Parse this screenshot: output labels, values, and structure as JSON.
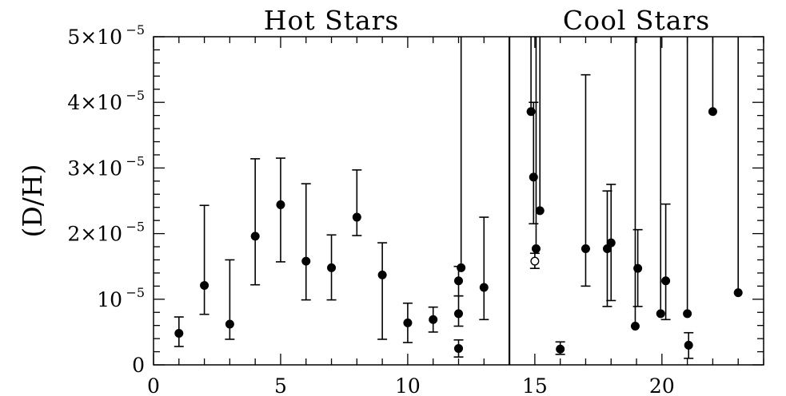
{
  "chart_data": {
    "type": "scatter",
    "title": "",
    "xlabel": "",
    "ylabel": "(D/H)",
    "xlim": [
      0,
      24
    ],
    "ylim": [
      0,
      5e-05
    ],
    "x_ticks": [
      {
        "value": 0,
        "label": "0"
      },
      {
        "value": 5,
        "label": "5"
      },
      {
        "value": 10,
        "label": "10"
      },
      {
        "value": 15,
        "label": "15"
      },
      {
        "value": 20,
        "label": "20"
      }
    ],
    "y_ticks": [
      {
        "value": 0,
        "label": "0",
        "exp": ""
      },
      {
        "value": 1e-05,
        "label": "10",
        "exp": "−5"
      },
      {
        "value": 2e-05,
        "label": "2×10",
        "exp": "−5"
      },
      {
        "value": 3e-05,
        "label": "3×10",
        "exp": "−5"
      },
      {
        "value": 4e-05,
        "label": "4×10",
        "exp": "−5"
      },
      {
        "value": 5e-05,
        "label": "5×10",
        "exp": "−5"
      }
    ],
    "grid": false,
    "divider_x": 14,
    "panels": [
      {
        "label": "Hot Stars",
        "x_center": 7
      },
      {
        "label": "Cool Stars",
        "x_center": 19
      }
    ],
    "series": [
      {
        "points": [
          {
            "x": 1,
            "y": 4.8e-06,
            "lo": 2.8e-06,
            "hi": 7.3e-06
          },
          {
            "x": 2,
            "y": 1.21e-05,
            "lo": 7.7e-06,
            "hi": 2.43e-05
          },
          {
            "x": 3,
            "y": 6.2e-06,
            "lo": 3.9e-06,
            "hi": 1.6e-05
          },
          {
            "x": 4,
            "y": 1.96e-05,
            "lo": 1.22e-05,
            "hi": 3.14e-05
          },
          {
            "x": 5,
            "y": 2.44e-05,
            "lo": 1.57e-05,
            "hi": 3.15e-05
          },
          {
            "x": 6,
            "y": 1.58e-05,
            "lo": 9.9e-06,
            "hi": 2.76e-05
          },
          {
            "x": 7,
            "y": 1.48e-05,
            "lo": 9.9e-06,
            "hi": 1.98e-05
          },
          {
            "x": 8,
            "y": 2.25e-05,
            "lo": 1.97e-05,
            "hi": 2.97e-05
          },
          {
            "x": 9,
            "y": 1.37e-05,
            "lo": 3.9e-06,
            "hi": 1.86e-05
          },
          {
            "x": 10,
            "y": 6.4e-06,
            "lo": 3.4e-06,
            "hi": 9.4e-06
          },
          {
            "x": 11,
            "y": 6.9e-06,
            "lo": 5e-06,
            "hi": 8.8e-06
          },
          {
            "x": 12,
            "y": 2.5e-06,
            "lo": 1.2e-06,
            "hi": 3.8e-06
          },
          {
            "x": 12,
            "y": 7.8e-06,
            "lo": 5.9e-06,
            "hi": 1.05e-05
          },
          {
            "x": 12,
            "y": 1.28e-05,
            "lo": 1.05e-05,
            "hi": 1.5e-05
          },
          {
            "x": 12.1,
            "y": 1.48e-05,
            "lo": 1.48e-05,
            "hi": 5e-05
          },
          {
            "x": 13,
            "y": 1.18e-05,
            "lo": 6.9e-06,
            "hi": 2.25e-05
          },
          {
            "x": 14.85,
            "y": 3.86e-05,
            "lo": 3.86e-05,
            "hi": 5e-05
          },
          {
            "x": 14.95,
            "y": 2.86e-05,
            "lo": 2.15e-05,
            "hi": 4e-05
          },
          {
            "x": 15.05,
            "y": 1.77e-05,
            "lo": 1.77e-05,
            "hi": 5e-05
          },
          {
            "x": 15.2,
            "y": 2.35e-05,
            "lo": 2.35e-05,
            "hi": 5e-05
          },
          {
            "x": 15,
            "y": 1.58e-05,
            "lo": 1.47e-05,
            "hi": 1.7e-05,
            "open": true
          },
          {
            "x": 16,
            "y": 2.4e-06,
            "lo": 1.6e-06,
            "hi": 3.5e-06
          },
          {
            "x": 17,
            "y": 1.77e-05,
            "lo": 1.2e-05,
            "hi": 4.42e-05
          },
          {
            "x": 17.85,
            "y": 1.77e-05,
            "lo": 8.9e-06,
            "hi": 2.65e-05
          },
          {
            "x": 18,
            "y": 1.86e-05,
            "lo": 9.8e-06,
            "hi": 2.75e-05
          },
          {
            "x": 18.95,
            "y": 5.9e-06,
            "lo": 5.9e-06,
            "hi": 5e-05
          },
          {
            "x": 19.05,
            "y": 1.47e-05,
            "lo": 8.9e-06,
            "hi": 2.06e-05
          },
          {
            "x": 19.95,
            "y": 7.8e-06,
            "lo": 7.8e-06,
            "hi": 5e-05
          },
          {
            "x": 20.15,
            "y": 1.28e-05,
            "lo": 6.9e-06,
            "hi": 2.45e-05
          },
          {
            "x": 21,
            "y": 7.8e-06,
            "lo": 7.8e-06,
            "hi": 5e-05
          },
          {
            "x": 21.05,
            "y": 3e-06,
            "lo": 1e-06,
            "hi": 4.9e-06
          },
          {
            "x": 22,
            "y": 3.86e-05,
            "lo": 3.86e-05,
            "hi": 5e-05
          },
          {
            "x": 23,
            "y": 1.1e-05,
            "lo": 1.1e-05,
            "hi": 5e-05
          }
        ]
      }
    ]
  }
}
